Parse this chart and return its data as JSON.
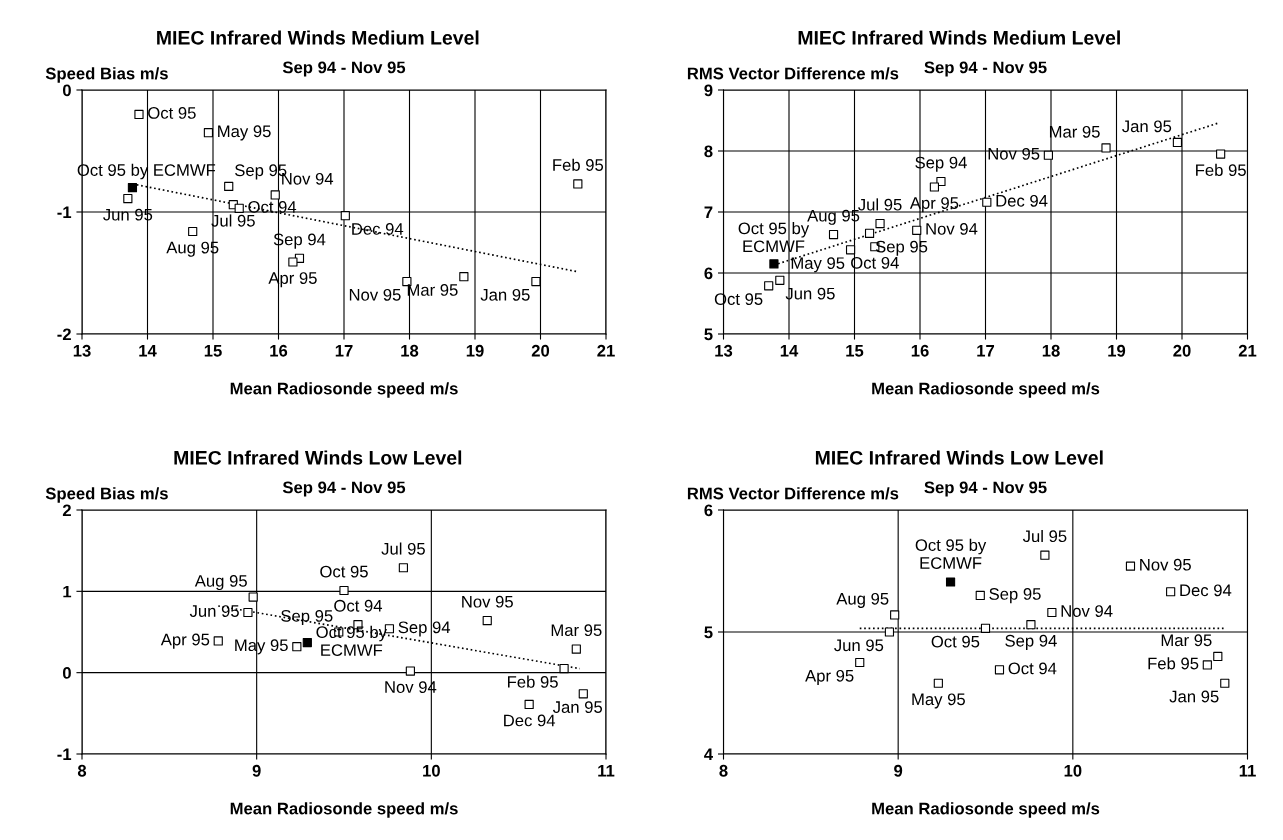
{
  "chart_data": [
    {
      "type": "scatter",
      "title": "MIEC Infrared Winds Medium Level",
      "subtitle": "Sep 94 - Nov 95",
      "ylabel": "Speed Bias m/s",
      "xlabel": "Mean Radiosonde speed m/s",
      "xlim": [
        13,
        21
      ],
      "xticks": [
        13,
        14,
        15,
        16,
        17,
        18,
        19,
        20,
        21
      ],
      "ylim": [
        -2,
        0
      ],
      "yticks": [
        -2,
        -1,
        0
      ],
      "grid": true,
      "series": [
        {
          "marker": "square",
          "color": "#ffffff",
          "x": [
            13.87,
            14.93,
            13.7,
            15.24,
            15.31,
            15.4,
            15.95,
            14.69,
            17.02,
            16.32,
            16.22,
            17.96,
            18.83,
            19.93,
            20.57
          ],
          "values": [
            -0.2,
            -0.35,
            -0.89,
            -0.79,
            -0.94,
            -0.97,
            -0.86,
            -1.16,
            -1.03,
            -1.38,
            -1.41,
            -1.57,
            -1.53,
            -1.57,
            -0.77
          ],
          "value_labels": [
            "Oct 95",
            "May 95",
            "Jun 95",
            "Sep 95",
            "Jul 95",
            "Oct 94",
            "Nov 94",
            "Aug 95",
            "Dec 94",
            "Sep 94",
            "Apr 95",
            "Nov 95",
            "Mar 95",
            "Jan 95",
            "Feb 95"
          ]
        },
        {
          "marker": "square",
          "color": "#000000",
          "x": [
            13.77
          ],
          "values": [
            -0.8
          ],
          "value_labels": [
            "Oct 95 by ECMWF"
          ]
        },
        {
          "type": "line",
          "line_style": "dotted",
          "color": "#000000",
          "x": [
            13.77,
            20.57
          ],
          "values": [
            -0.77,
            -1.49
          ]
        }
      ]
    },
    {
      "type": "scatter",
      "title": "MIEC Infrared Winds Medium Level",
      "subtitle": "Sep 94 - Nov 95",
      "ylabel": "RMS Vector Difference m/s",
      "xlabel": "Mean Radiosonde speed m/s",
      "xlim": [
        13,
        21
      ],
      "xticks": [
        13,
        14,
        15,
        16,
        17,
        18,
        19,
        20,
        21
      ],
      "ylim": [
        5,
        9
      ],
      "yticks": [
        5,
        6,
        7,
        8,
        9
      ],
      "grid": true,
      "series": [
        {
          "marker": "square",
          "color": "#ffffff",
          "x": [
            13.69,
            13.86,
            14.68,
            14.94,
            15.23,
            15.39,
            15.31,
            15.95,
            16.32,
            16.22,
            17.02,
            17.96,
            18.84,
            19.93,
            20.59
          ],
          "values": [
            5.79,
            5.88,
            6.63,
            6.38,
            6.65,
            6.81,
            6.43,
            6.7,
            7.5,
            7.41,
            7.16,
            7.93,
            8.05,
            8.14,
            7.95
          ],
          "value_labels": [
            "Oct 95",
            "Jun 95",
            "Aug 95",
            "May 95",
            "Sep 95",
            "Jul 95",
            "Oct 94",
            "Nov 94",
            "Sep 94",
            "Apr 95",
            "Dec 94",
            "Nov 95",
            "Mar 95",
            "Jan 95",
            "Feb 95"
          ]
        },
        {
          "marker": "square",
          "color": "#000000",
          "x": [
            13.77
          ],
          "values": [
            6.15
          ],
          "value_labels": [
            "Oct 95 by\nECMWF"
          ]
        },
        {
          "type": "line",
          "line_style": "dotted",
          "color": "#000000",
          "x": [
            13.77,
            20.56
          ],
          "values": [
            6.13,
            8.46
          ]
        }
      ]
    },
    {
      "type": "scatter",
      "title": "MIEC Infrared Winds Low Level",
      "subtitle": "Sep 94 - Nov 95",
      "ylabel": "Speed Bias m/s",
      "xlabel": "Mean Radiosonde speed m/s",
      "xlim": [
        8,
        11
      ],
      "xticks": [
        8,
        9,
        10,
        11
      ],
      "ylim": [
        -1,
        2
      ],
      "yticks": [
        -1,
        0,
        1,
        2
      ],
      "grid": true,
      "series": [
        {
          "marker": "square",
          "color": "#ffffff",
          "x": [
            8.98,
            8.95,
            8.78,
            9.23,
            9.47,
            9.5,
            9.58,
            9.76,
            9.84,
            9.88,
            10.32,
            10.83,
            10.76,
            10.56,
            10.87
          ],
          "values": [
            0.93,
            0.74,
            0.39,
            0.32,
            0.5,
            1.01,
            0.59,
            0.54,
            1.29,
            0.02,
            0.64,
            0.29,
            0.05,
            -0.39,
            -0.26
          ],
          "value_labels": [
            "Aug 95",
            "Jun 95",
            "Apr 95",
            "May 95",
            "Sep 95",
            "Oct 95",
            "Oct 94",
            "Sep 94",
            "Jul 95",
            "Nov 94",
            "Nov 95",
            "Mar 95",
            "Feb 95",
            "Dec 94",
            "Jan 95"
          ]
        },
        {
          "marker": "square",
          "color": "#000000",
          "x": [
            9.29
          ],
          "values": [
            0.37
          ],
          "value_labels": [
            "Oct 95 by\nECMWF"
          ]
        },
        {
          "type": "line",
          "line_style": "dotted",
          "color": "#000000",
          "x": [
            8.78,
            10.85
          ],
          "values": [
            0.82,
            0.05
          ]
        }
      ]
    },
    {
      "type": "scatter",
      "title": "MIEC Infrared Winds Low Level",
      "subtitle": "Sep 94 - Nov 95",
      "ylabel": "RMS Vector Difference m/s",
      "xlabel": "Mean Radiosonde speed m/s",
      "xlim": [
        8,
        11
      ],
      "xticks": [
        8,
        9,
        10,
        11
      ],
      "ylim": [
        4,
        6
      ],
      "yticks": [
        4,
        5,
        6
      ],
      "grid": true,
      "series": [
        {
          "marker": "square",
          "color": "#ffffff",
          "x": [
            9.84,
            10.33,
            10.56,
            9.47,
            9.88,
            8.98,
            8.95,
            9.5,
            9.76,
            8.78,
            9.23,
            9.58,
            10.83,
            10.77,
            10.87
          ],
          "values": [
            5.63,
            5.54,
            5.33,
            5.3,
            5.16,
            5.14,
            5.0,
            5.03,
            5.06,
            4.75,
            4.58,
            4.69,
            4.8,
            4.73,
            4.58
          ],
          "value_labels": [
            "Jul 95",
            "Nov 95",
            "Dec 94",
            "Sep 95",
            "Nov 94",
            "Aug 95",
            "Jun 95",
            "Oct 95",
            "Sep 94",
            "Apr 95",
            "May 95",
            "Oct 94",
            "Mar 95",
            "Feb 95",
            "Jan 95"
          ]
        },
        {
          "marker": "square",
          "color": "#000000",
          "x": [
            9.3
          ],
          "values": [
            5.41
          ],
          "value_labels": [
            "Oct 95 by\nECMWF"
          ]
        },
        {
          "type": "line",
          "line_style": "dotted",
          "color": "#000000",
          "x": [
            8.78,
            10.87
          ],
          "values": [
            5.03,
            5.03
          ]
        }
      ]
    }
  ]
}
